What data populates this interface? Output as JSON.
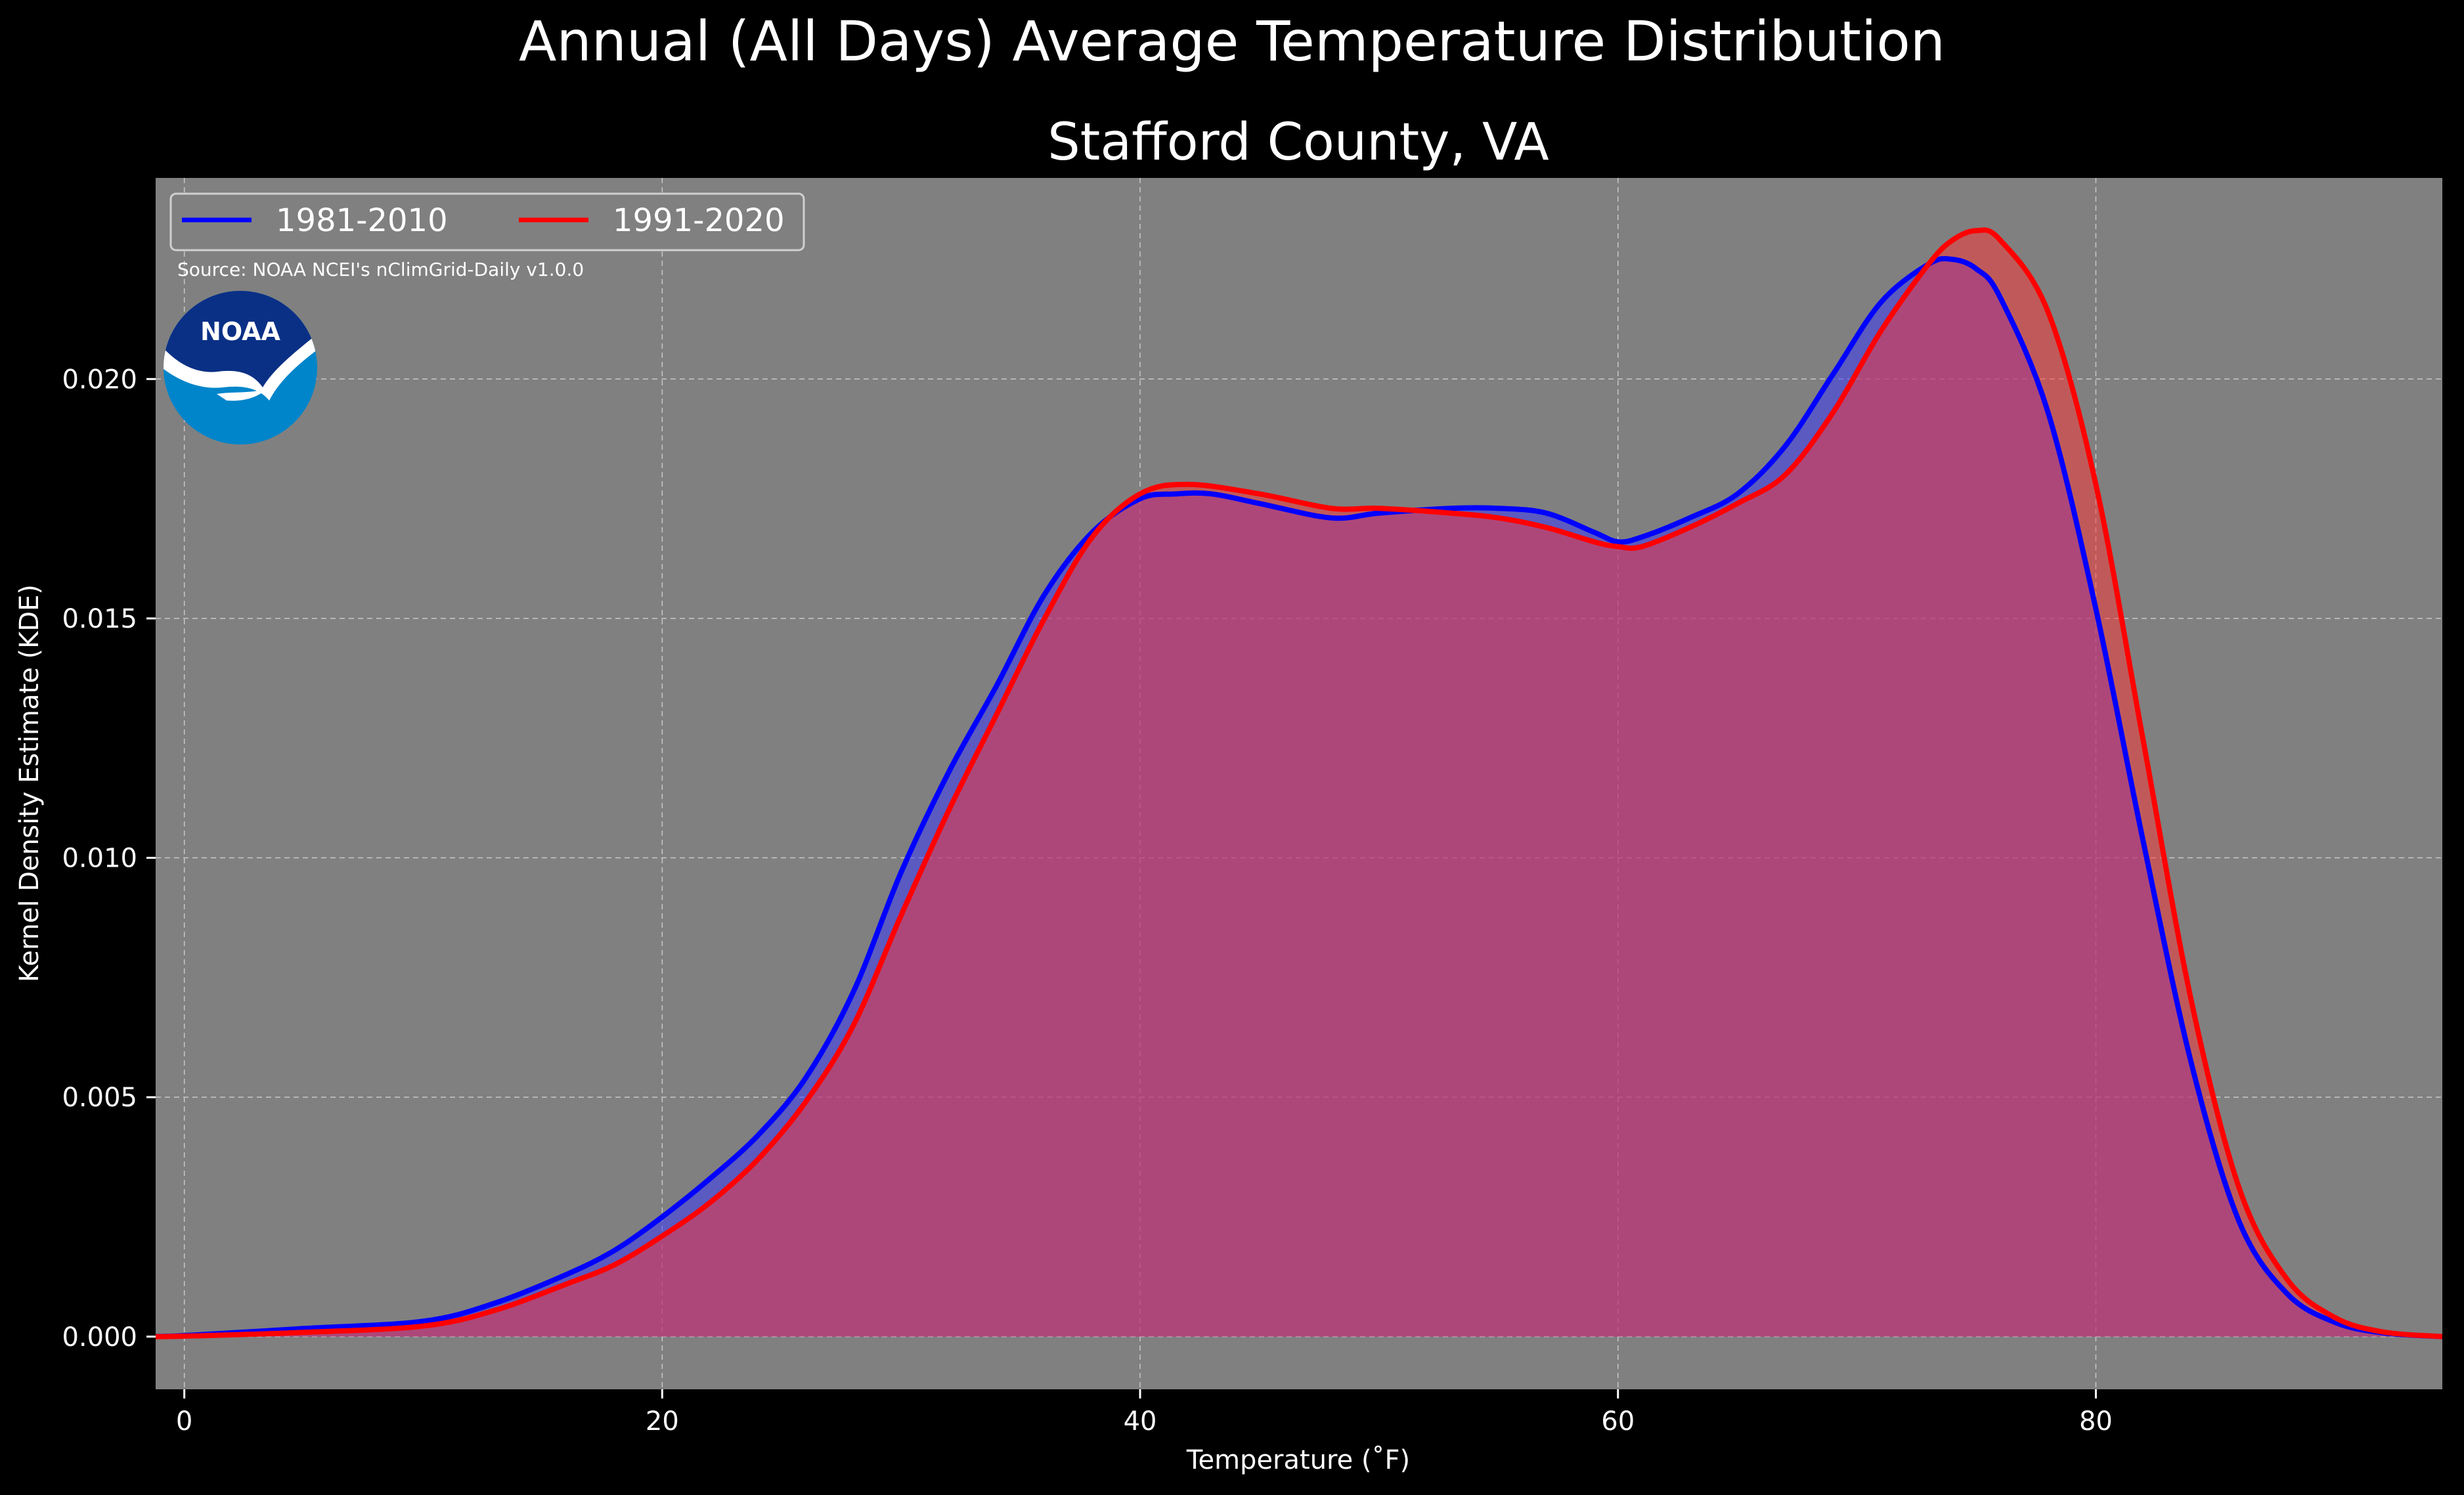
{
  "figure": {
    "suptitle": "Annual (All Days) Average Temperature Distribution",
    "source_note": "Source: NOAA NCEI's nClimGrid-Daily v1.0.0",
    "logo_text": "NOAA",
    "background_color": "#000000",
    "plot_background_color": "#808080",
    "logo_colors": {
      "top": "#0a3086",
      "bottom": "#0085ca",
      "band": "#ffffff"
    }
  },
  "chart_data": {
    "type": "area",
    "title": "Stafford County, VA",
    "xlabel": "Temperature (˚F)",
    "ylabel": "Kernel Density Estimate (KDE)",
    "xlim": [
      -1.2,
      94.5
    ],
    "ylim": [
      -0.0011,
      0.0242
    ],
    "xticks": [
      0,
      20,
      40,
      60,
      80
    ],
    "xtick_labels": [
      "0",
      "20",
      "40",
      "60",
      "80"
    ],
    "yticks": [
      0.0,
      0.005,
      0.01,
      0.015,
      0.02
    ],
    "ytick_labels": [
      "0.000",
      "0.005",
      "0.010",
      "0.015",
      "0.020"
    ],
    "grid": true,
    "legend": {
      "position": "top-left",
      "columns": 2
    },
    "series": [
      {
        "name": "1981-2010",
        "color": "#0000ff",
        "fill_color": "#3333ff",
        "x": [
          -2,
          0,
          5,
          10,
          13,
          16,
          18,
          20,
          22,
          24,
          26,
          28,
          30,
          32,
          34,
          36,
          38,
          40,
          41.5,
          43,
          45,
          48,
          50,
          53,
          55,
          57,
          59,
          60,
          61,
          63,
          65,
          67,
          69,
          71,
          73,
          74,
          75,
          76,
          78,
          80,
          82,
          84,
          86,
          88,
          90,
          92,
          94.5
        ],
        "y": [
          0.0,
          2e-05,
          0.00017,
          0.00032,
          0.0007,
          0.0013,
          0.0018,
          0.0025,
          0.0033,
          0.0042,
          0.0054,
          0.0072,
          0.0097,
          0.0118,
          0.0136,
          0.0155,
          0.0168,
          0.0175,
          0.0176,
          0.0176,
          0.0174,
          0.0171,
          0.0172,
          0.0173,
          0.0173,
          0.0172,
          0.0168,
          0.0166,
          0.0167,
          0.0171,
          0.0176,
          0.0186,
          0.0201,
          0.0216,
          0.0224,
          0.0225,
          0.0223,
          0.0217,
          0.0193,
          0.0152,
          0.0103,
          0.0057,
          0.0024,
          0.0009,
          0.0003,
          8e-05,
          0.0
        ]
      },
      {
        "name": "1991-2020",
        "color": "#ff0000",
        "fill_color": "#ff3333",
        "x": [
          -2,
          0,
          5,
          10,
          13,
          16,
          18,
          20,
          22,
          24,
          26,
          28,
          30,
          32,
          34,
          36,
          38,
          40,
          42,
          45,
          48,
          50,
          53,
          55,
          57,
          59,
          60,
          61,
          63,
          65,
          67,
          69,
          71,
          73,
          74,
          75,
          76,
          78,
          80,
          82,
          84,
          86,
          88,
          90,
          92,
          94.5
        ],
        "y": [
          0.0,
          1e-05,
          9e-05,
          0.00022,
          0.00055,
          0.0011,
          0.0015,
          0.0021,
          0.0028,
          0.0037,
          0.0049,
          0.0065,
          0.0088,
          0.011,
          0.013,
          0.015,
          0.0167,
          0.0176,
          0.0178,
          0.0176,
          0.0173,
          0.0173,
          0.0172,
          0.0171,
          0.0169,
          0.0166,
          0.0165,
          0.0165,
          0.0169,
          0.0174,
          0.018,
          0.0193,
          0.021,
          0.0224,
          0.0229,
          0.0231,
          0.0229,
          0.0214,
          0.0178,
          0.0124,
          0.007,
          0.0031,
          0.0012,
          0.0004,
          0.0001,
          0.0
        ]
      }
    ]
  }
}
